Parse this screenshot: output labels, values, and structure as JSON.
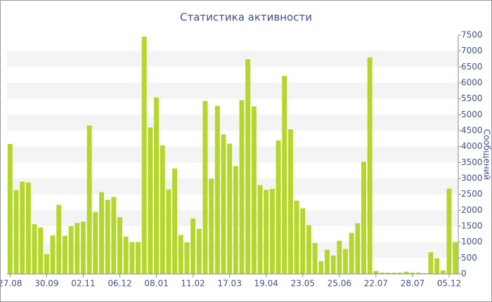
{
  "chart_data": {
    "type": "bar",
    "title": "Статистика активности",
    "y_label": "Сообщений",
    "categories": [
      "27.08",
      null,
      null,
      null,
      null,
      null,
      "30.09",
      null,
      null,
      null,
      null,
      null,
      "02.11",
      null,
      null,
      null,
      null,
      null,
      "06.12",
      null,
      null,
      null,
      null,
      null,
      "08.01",
      null,
      null,
      null,
      null,
      null,
      "11.02",
      null,
      null,
      null,
      null,
      null,
      "17.03",
      null,
      null,
      null,
      null,
      null,
      "19.04",
      null,
      null,
      null,
      null,
      null,
      "23.05",
      null,
      null,
      null,
      null,
      null,
      "25.06",
      null,
      null,
      null,
      null,
      null,
      "22.07",
      null,
      null,
      null,
      null,
      null,
      "28.07",
      null,
      null,
      null,
      null,
      null,
      "05.12",
      null
    ],
    "values": [
      4080,
      2630,
      2900,
      2870,
      1560,
      1460,
      620,
      1210,
      2170,
      1200,
      1500,
      1600,
      1640,
      4660,
      1940,
      2570,
      2330,
      2420,
      1780,
      1170,
      1000,
      1000,
      7450,
      4600,
      5540,
      4040,
      2650,
      3310,
      1220,
      990,
      1740,
      1420,
      5430,
      2990,
      5280,
      4380,
      4090,
      3390,
      5460,
      6740,
      5260,
      2790,
      2640,
      2670,
      4190,
      6220,
      4540,
      2300,
      2060,
      1530,
      970,
      400,
      760,
      580,
      1040,
      780,
      1290,
      1590,
      3520,
      6800,
      90,
      40,
      40,
      40,
      40,
      70,
      40,
      40,
      20,
      680,
      490,
      110,
      2680,
      1000
    ],
    "color": "#b5d62a",
    "ylim": [
      0,
      7500
    ],
    "yticks": [
      0,
      500,
      1000,
      1500,
      2000,
      2500,
      3000,
      3500,
      4000,
      4500,
      5000,
      5500,
      6000,
      6500,
      7000,
      7500
    ],
    "grid": true
  }
}
